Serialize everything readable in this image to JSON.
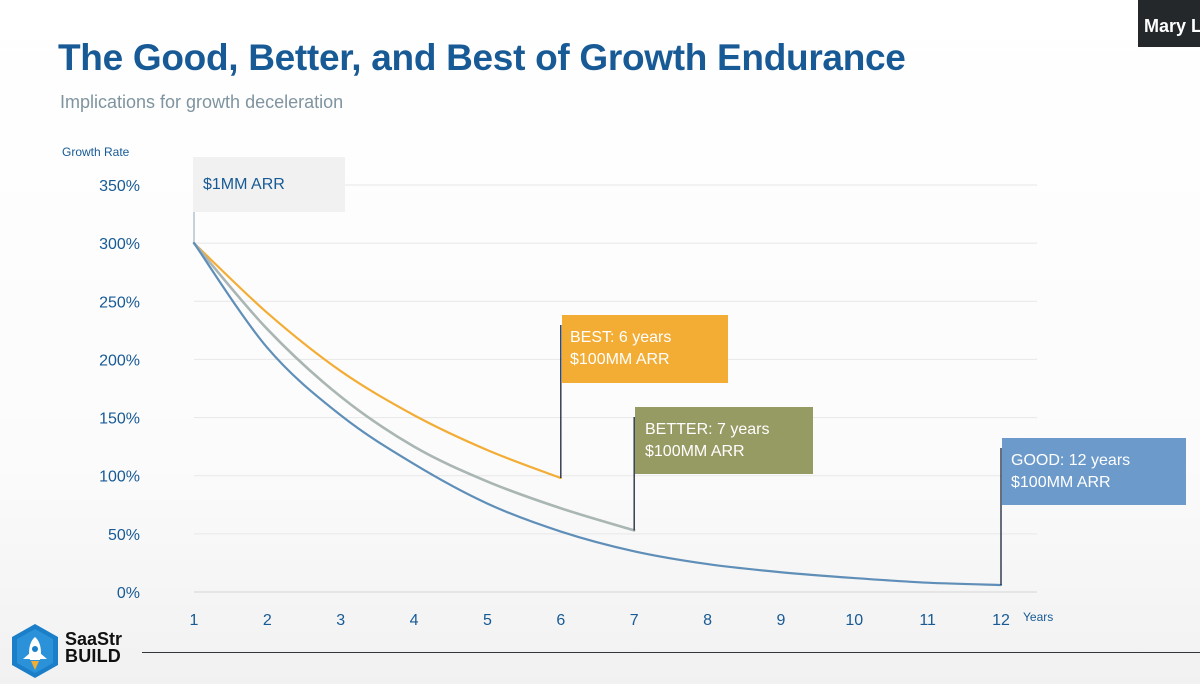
{
  "slide": {
    "title": "The Good, Better, and Best of Growth Endurance",
    "subtitle": "Implications for growth deceleration"
  },
  "participant": {
    "name_visible": "Mary L"
  },
  "brand": {
    "line1": "SaaStr",
    "line2": "BUILD"
  },
  "annotations": {
    "start": "$1MM ARR",
    "best_line1": "BEST: 6 years",
    "best_line2": "$100MM ARR",
    "better_line1": "BETTER: 7 years",
    "better_line2": "$100MM ARR",
    "good_line1": "GOOD: 12 years",
    "good_line2": "$100MM ARR"
  },
  "chart_data": {
    "type": "line",
    "title": "The Good, Better, and Best of Growth Endurance",
    "subtitle": "Implications for growth deceleration",
    "xlabel": "Years",
    "ylabel": "Growth Rate",
    "x": [
      1,
      2,
      3,
      4,
      5,
      6,
      7,
      8,
      9,
      10,
      11,
      12
    ],
    "xlim": [
      1,
      12
    ],
    "ylim": [
      0,
      350
    ],
    "y_ticks": [
      0,
      50,
      100,
      150,
      200,
      250,
      300,
      350
    ],
    "y_tick_labels": [
      "0%",
      "50%",
      "100%",
      "150%",
      "200%",
      "250%",
      "300%",
      "350%"
    ],
    "x_tick_labels": [
      "1",
      "2",
      "3",
      "4",
      "5",
      "6",
      "7",
      "8",
      "9",
      "10",
      "11",
      "12"
    ],
    "grid": "horizontal",
    "series": [
      {
        "name": "BEST: 6 years",
        "color": "#f3ad35",
        "x": [
          1,
          2,
          3,
          4,
          5,
          6
        ],
        "values": [
          300,
          240,
          190,
          152,
          122,
          98
        ]
      },
      {
        "name": "BETTER: 7 years",
        "color": "#a9b6b4",
        "x": [
          1,
          2,
          3,
          4,
          5,
          6,
          7
        ],
        "values": [
          300,
          226,
          168,
          125,
          95,
          72,
          53
        ]
      },
      {
        "name": "GOOD: 12 years",
        "color": "#5f8fb8",
        "x": [
          1,
          2,
          3,
          4,
          5,
          6,
          7,
          8,
          9,
          10,
          11,
          12
        ],
        "values": [
          300,
          210,
          152,
          110,
          76,
          52,
          35,
          24,
          17,
          12,
          8,
          6
        ]
      }
    ],
    "annotations": [
      {
        "text": "$1MM ARR",
        "x": 1,
        "y": 350
      },
      {
        "text": "BEST: 6 years $100MM ARR",
        "x": 6,
        "y": 98
      },
      {
        "text": "BETTER: 7 years $100MM ARR",
        "x": 7,
        "y": 53
      },
      {
        "text": "GOOD: 12 years $100MM ARR",
        "x": 12,
        "y": 6
      }
    ]
  }
}
